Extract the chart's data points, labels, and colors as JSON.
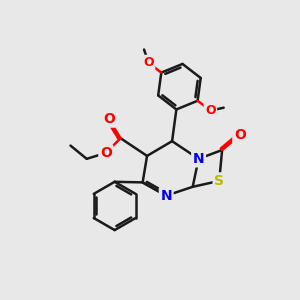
{
  "background_color": "#e8e8e8",
  "bond_color": "#1a1a1a",
  "bond_width": 1.8,
  "atom_colors": {
    "O": "#ff0000",
    "N": "#0000ee",
    "S": "#bbbb00",
    "C": "#1a1a1a"
  },
  "figsize": [
    3.0,
    3.0
  ],
  "dpi": 100,
  "xlim": [
    0,
    10
  ],
  "ylim": [
    0,
    10
  ]
}
